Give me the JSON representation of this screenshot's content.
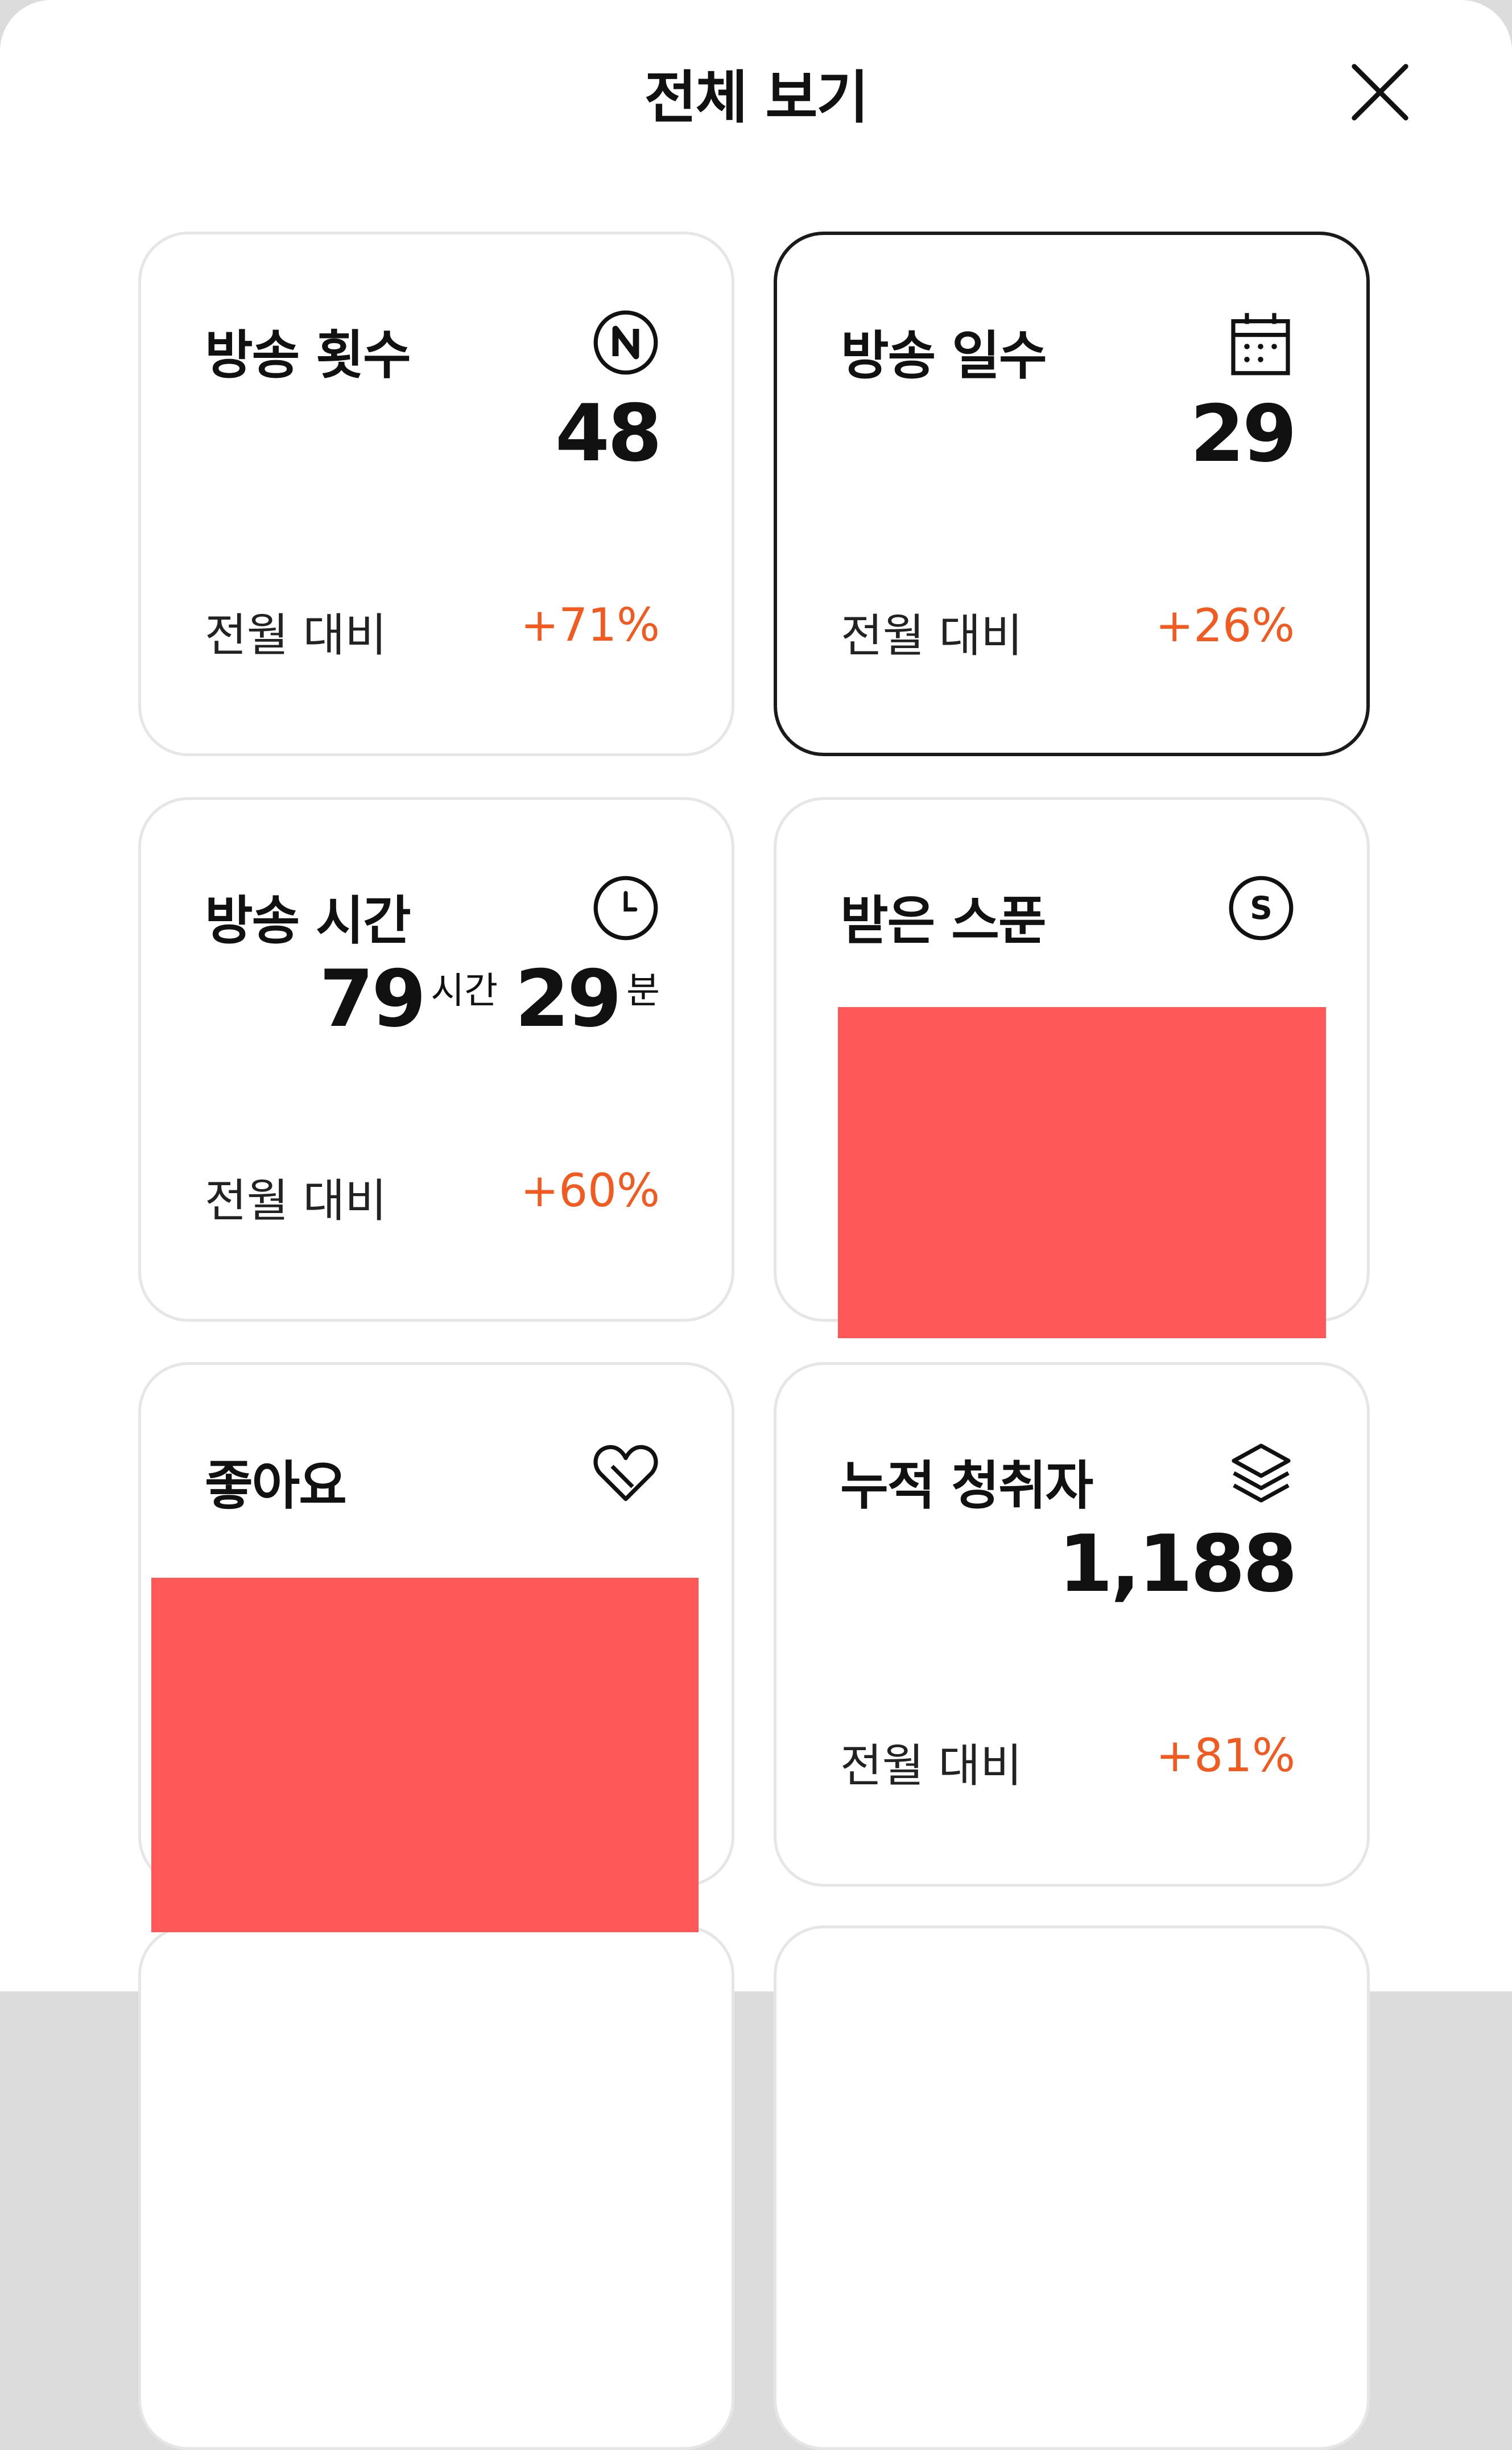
{
  "header": {
    "title": "전체 보기",
    "close_icon": "close-icon"
  },
  "cards": [
    {
      "title": "방송 횟수",
      "icon": "n-circle-icon",
      "value": "48",
      "compare_label": "전월 대비",
      "change": "+71%",
      "selected": false
    },
    {
      "title": "방송 일수",
      "icon": "calendar-icon",
      "value": "29",
      "compare_label": "전월 대비",
      "change": "+26%",
      "selected": true
    },
    {
      "title": "방송 시간",
      "icon": "clock-icon",
      "hours": "79",
      "hours_unit": "시간",
      "minutes": "29",
      "minutes_unit": "분",
      "compare_label": "전월 대비",
      "change": "+60%",
      "selected": false
    },
    {
      "title": "받은 스푼",
      "icon": "spoon-coin-icon",
      "redacted": true,
      "selected": false
    },
    {
      "title": "좋아요",
      "icon": "heart-icon",
      "redacted": true,
      "selected": false
    },
    {
      "title": "누적 청취자",
      "icon": "layers-icon",
      "value": "1,188",
      "compare_label": "전월 대비",
      "change": "+81%",
      "selected": false
    }
  ],
  "colors": {
    "change": "#f25a1f",
    "redaction": "#ff5858",
    "selected_border": "#1a1a1a",
    "card_border": "#e6e6e6"
  }
}
